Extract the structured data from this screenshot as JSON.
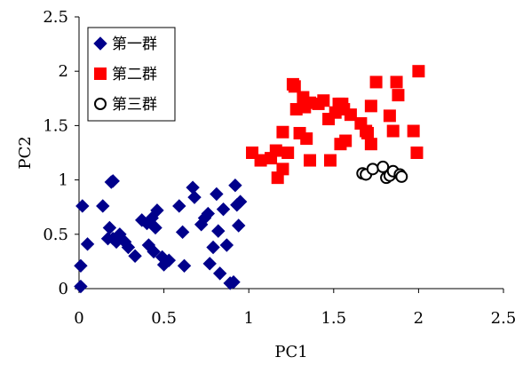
{
  "chart_data": {
    "type": "scatter",
    "title": "",
    "xlabel": "PC1",
    "ylabel": "PC2",
    "xlim": [
      0,
      2.5
    ],
    "ylim": [
      0,
      2.5
    ],
    "xticks": [
      "0",
      "0.5",
      "1",
      "1.5",
      "2",
      "2.5"
    ],
    "yticks": [
      "0",
      "0.5",
      "1",
      "1.5",
      "2",
      "2.5"
    ],
    "grid": false,
    "legend_position": "top-left",
    "series": [
      {
        "name": "第一群",
        "marker": "diamond",
        "color": "#00008B",
        "points": [
          [
            0.01,
            0.02
          ],
          [
            0.01,
            0.21
          ],
          [
            0.02,
            0.76
          ],
          [
            0.05,
            0.41
          ],
          [
            0.14,
            0.76
          ],
          [
            0.17,
            0.46
          ],
          [
            0.18,
            0.56
          ],
          [
            0.19,
            0.98
          ],
          [
            0.2,
            0.99
          ],
          [
            0.2,
            0.46
          ],
          [
            0.22,
            0.43
          ],
          [
            0.24,
            0.5
          ],
          [
            0.27,
            0.43
          ],
          [
            0.29,
            0.38
          ],
          [
            0.33,
            0.3
          ],
          [
            0.37,
            0.63
          ],
          [
            0.4,
            0.6
          ],
          [
            0.41,
            0.4
          ],
          [
            0.43,
            0.65
          ],
          [
            0.44,
            0.34
          ],
          [
            0.45,
            0.56
          ],
          [
            0.46,
            0.72
          ],
          [
            0.49,
            0.29
          ],
          [
            0.5,
            0.22
          ],
          [
            0.53,
            0.26
          ],
          [
            0.59,
            0.76
          ],
          [
            0.61,
            0.52
          ],
          [
            0.62,
            0.21
          ],
          [
            0.67,
            0.93
          ],
          [
            0.68,
            0.84
          ],
          [
            0.72,
            0.59
          ],
          [
            0.74,
            0.65
          ],
          [
            0.76,
            0.69
          ],
          [
            0.77,
            0.23
          ],
          [
            0.79,
            0.38
          ],
          [
            0.81,
            0.87
          ],
          [
            0.82,
            0.53
          ],
          [
            0.83,
            0.14
          ],
          [
            0.85,
            0.73
          ],
          [
            0.87,
            0.4
          ],
          [
            0.89,
            0.05
          ],
          [
            0.91,
            0.06
          ],
          [
            0.92,
            0.95
          ],
          [
            0.93,
            0.77
          ],
          [
            0.94,
            0.58
          ],
          [
            0.95,
            0.8
          ]
        ]
      },
      {
        "name": "第二群",
        "marker": "square",
        "color": "#FF0000",
        "points": [
          [
            1.02,
            1.25
          ],
          [
            1.07,
            1.18
          ],
          [
            1.13,
            1.2
          ],
          [
            1.16,
            1.27
          ],
          [
            1.17,
            1.02
          ],
          [
            1.2,
            1.1
          ],
          [
            1.2,
            1.44
          ],
          [
            1.23,
            1.25
          ],
          [
            1.26,
            1.88
          ],
          [
            1.27,
            1.86
          ],
          [
            1.28,
            1.65
          ],
          [
            1.3,
            1.43
          ],
          [
            1.32,
            1.76
          ],
          [
            1.33,
            1.67
          ],
          [
            1.34,
            1.38
          ],
          [
            1.36,
            1.71
          ],
          [
            1.36,
            1.18
          ],
          [
            1.41,
            1.7
          ],
          [
            1.44,
            1.73
          ],
          [
            1.47,
            1.56
          ],
          [
            1.48,
            1.18
          ],
          [
            1.51,
            1.62
          ],
          [
            1.53,
            1.7
          ],
          [
            1.54,
            1.33
          ],
          [
            1.55,
            1.7
          ],
          [
            1.56,
            1.65
          ],
          [
            1.57,
            1.36
          ],
          [
            1.6,
            1.6
          ],
          [
            1.66,
            1.52
          ],
          [
            1.69,
            1.45
          ],
          [
            1.7,
            1.43
          ],
          [
            1.72,
            1.33
          ],
          [
            1.72,
            1.68
          ],
          [
            1.75,
            1.9
          ],
          [
            1.83,
            1.59
          ],
          [
            1.85,
            1.45
          ],
          [
            1.87,
            1.9
          ],
          [
            1.88,
            1.78
          ],
          [
            1.97,
            1.45
          ],
          [
            1.99,
            1.25
          ],
          [
            2.0,
            2.0
          ]
        ]
      },
      {
        "name": "第三群",
        "marker": "circle",
        "color": "#FFFFFF",
        "stroke": "#000000",
        "points": [
          [
            1.67,
            1.06
          ],
          [
            1.69,
            1.05
          ],
          [
            1.73,
            1.1
          ],
          [
            1.79,
            1.12
          ],
          [
            1.81,
            1.02
          ],
          [
            1.83,
            1.04
          ],
          [
            1.85,
            1.08
          ],
          [
            1.89,
            1.05
          ],
          [
            1.9,
            1.03
          ]
        ]
      }
    ]
  }
}
